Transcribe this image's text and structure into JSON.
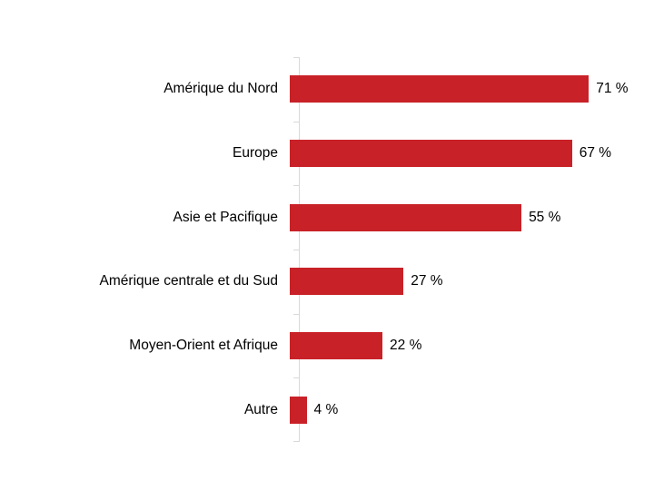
{
  "chart_data": {
    "type": "bar",
    "orientation": "horizontal",
    "title": "",
    "xlabel": "",
    "ylabel": "",
    "categories": [
      "Amérique du Nord",
      "Europe",
      "Asie et Pacifique",
      "Amérique centrale et du Sud",
      "Moyen-Orient et Afrique",
      "Autre"
    ],
    "values": [
      71,
      67,
      55,
      27,
      22,
      4
    ],
    "value_labels": [
      "71 %",
      "67 %",
      "55 %",
      "27 %",
      "22 %",
      "4 %"
    ],
    "unit": "%",
    "xlim": [
      0,
      80
    ],
    "grid": false,
    "legend": false,
    "bar_color": "#c92128",
    "axis_color": "#d9d9d9",
    "text_color": "#000000",
    "background_color": "#ffffff"
  }
}
